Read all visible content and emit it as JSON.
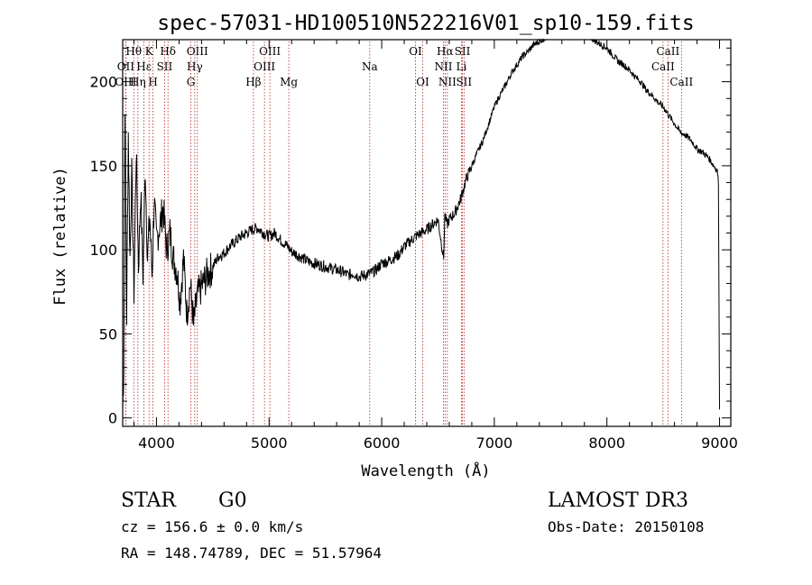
{
  "chart_data": {
    "type": "line",
    "title": "spec-57031-HD100510N522216V01_sp10-159.fits",
    "xlabel": "Wavelength (Å)",
    "ylabel": "Flux (relative)",
    "xlim": [
      3700,
      9100
    ],
    "ylim": [
      -5,
      225
    ],
    "xticks": [
      4000,
      5000,
      6000,
      7000,
      8000,
      9000
    ],
    "yticks": [
      0,
      50,
      100,
      150,
      200
    ],
    "xtick_labels": [
      "4000",
      "5000",
      "6000",
      "7000",
      "8000",
      "9000"
    ],
    "ytick_labels": [
      "0",
      "50",
      "100",
      "150",
      "200"
    ],
    "series": [
      {
        "name": "flux",
        "x": [
          3700,
          3710,
          3720,
          3735,
          3750,
          3765,
          3780,
          3800,
          3820,
          3840,
          3860,
          3880,
          3900,
          3920,
          3940,
          3960,
          3980,
          4000,
          4030,
          4060,
          4090,
          4120,
          4150,
          4180,
          4210,
          4240,
          4270,
          4300,
          4330,
          4360,
          4400,
          4450,
          4500,
          4550,
          4600,
          4650,
          4700,
          4750,
          4800,
          4850,
          4900,
          4950,
          5000,
          5050,
          5100,
          5150,
          5200,
          5250,
          5300,
          5350,
          5400,
          5450,
          5500,
          5550,
          5600,
          5650,
          5700,
          5750,
          5800,
          5850,
          5900,
          5950,
          6000,
          6050,
          6100,
          6150,
          6200,
          6250,
          6300,
          6350,
          6400,
          6450,
          6500,
          6550,
          6560,
          6580,
          6600,
          6650,
          6700,
          6750,
          6800,
          6850,
          6900,
          6950,
          7000,
          7050,
          7100,
          7150,
          7200,
          7250,
          7300,
          7350,
          7400,
          7450,
          7500,
          7550,
          7600,
          7650,
          7700,
          7750,
          7800,
          7850,
          7900,
          7950,
          8000,
          8050,
          8100,
          8150,
          8200,
          8250,
          8300,
          8350,
          8400,
          8450,
          8500,
          8550,
          8600,
          8650,
          8700,
          8750,
          8800,
          8850,
          8900,
          8950,
          8980,
          8990,
          9000
        ],
        "y": [
          5,
          30,
          190,
          60,
          170,
          95,
          145,
          75,
          160,
          90,
          135,
          85,
          150,
          95,
          120,
          85,
          130,
          105,
          115,
          125,
          100,
          110,
          95,
          88,
          70,
          95,
          62,
          80,
          55,
          72,
          78,
          85,
          90,
          96,
          98,
          102,
          105,
          108,
          110,
          112,
          113,
          110,
          108,
          110,
          106,
          103,
          99,
          97,
          95,
          93,
          92,
          91,
          90,
          89,
          88,
          87,
          85,
          86,
          84,
          85,
          86,
          88,
          92,
          93,
          95,
          97,
          102,
          105,
          108,
          110,
          112,
          115,
          118,
          95,
          120,
          115,
          118,
          122,
          130,
          142,
          150,
          158,
          165,
          175,
          185,
          192,
          198,
          205,
          210,
          215,
          218,
          222,
          224,
          226,
          228,
          228,
          229,
          230,
          230,
          229,
          228,
          227,
          224,
          222,
          220,
          216,
          212,
          210,
          207,
          203,
          200,
          195,
          192,
          188,
          185,
          180,
          175,
          170,
          168,
          165,
          160,
          158,
          155,
          150,
          147,
          140,
          5
        ]
      }
    ],
    "spectral_lines": [
      {
        "name": "Hθ",
        "wavelength": 3798,
        "row": 1
      },
      {
        "name": "OII",
        "wavelength": 3727,
        "row": 2
      },
      {
        "name": "OIII",
        "wavelength": 3727,
        "row": 3
      },
      {
        "name": "Hε",
        "wavelength": 3889,
        "row": 2
      },
      {
        "name": "Hη",
        "wavelength": 3835,
        "row": 3
      },
      {
        "name": "K",
        "wavelength": 3934,
        "row": 1
      },
      {
        "name": "H",
        "wavelength": 3969,
        "row": 3
      },
      {
        "name": "SII",
        "wavelength": 4072,
        "row": 2
      },
      {
        "name": "Hδ",
        "wavelength": 4102,
        "row": 1
      },
      {
        "name": "OIII",
        "wavelength": 4363,
        "row": 1
      },
      {
        "name": "Hγ",
        "wavelength": 4340,
        "row": 2
      },
      {
        "name": "G",
        "wavelength": 4305,
        "row": 3
      },
      {
        "name": "Hβ",
        "wavelength": 4861,
        "row": 3
      },
      {
        "name": "OIII",
        "wavelength": 5007,
        "row": 1
      },
      {
        "name": "OIII",
        "wavelength": 4959,
        "row": 2
      },
      {
        "name": "Mg",
        "wavelength": 5175,
        "row": 3
      },
      {
        "name": "Na",
        "wavelength": 5894,
        "row": 2
      },
      {
        "name": "OI",
        "wavelength": 6300,
        "row": 1
      },
      {
        "name": "OI",
        "wavelength": 6364,
        "row": 3
      },
      {
        "name": "Hα",
        "wavelength": 6563,
        "row": 1
      },
      {
        "name": "NII",
        "wavelength": 6548,
        "row": 2
      },
      {
        "name": "NII",
        "wavelength": 6583,
        "row": 3
      },
      {
        "name": "SII",
        "wavelength": 6717,
        "row": 1
      },
      {
        "name": "Li",
        "wavelength": 6708,
        "row": 2
      },
      {
        "name": "SII",
        "wavelength": 6731,
        "row": 3
      },
      {
        "name": "CaII",
        "wavelength": 8542,
        "row": 1
      },
      {
        "name": "CaII",
        "wavelength": 8498,
        "row": 2
      },
      {
        "name": "CaII",
        "wavelength": 8662,
        "row": 3
      }
    ]
  },
  "info": {
    "object_class": "STAR",
    "subclass": "G0",
    "survey": "LAMOST DR3",
    "cz": "cz = 156.6 ± 0.0 km/s",
    "obs_date": "Obs-Date: 20150108",
    "coords": "RA = 148.74789, DEC =  51.57964"
  },
  "colors": {
    "line_marker": "#b22222",
    "spectrum": "#000000"
  }
}
